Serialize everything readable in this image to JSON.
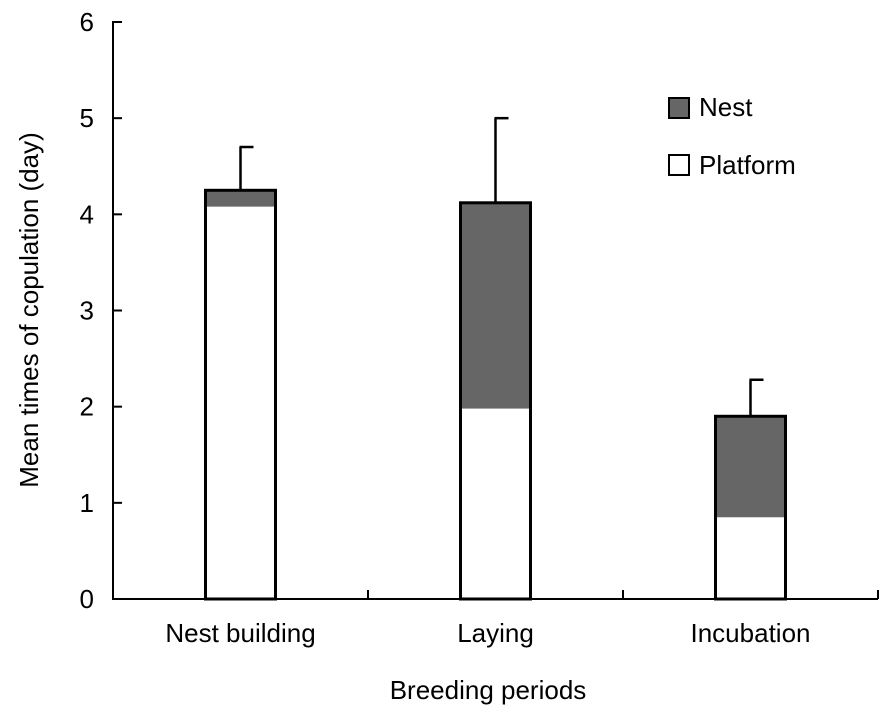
{
  "chart_data": {
    "type": "bar",
    "stacked": true,
    "categories": [
      "Nest building",
      "Laying",
      "Incubation"
    ],
    "series": [
      {
        "name": "Platform",
        "values": [
          4.08,
          1.98,
          0.85
        ],
        "color": "#ffffff"
      },
      {
        "name": "Nest",
        "values": [
          0.17,
          2.14,
          1.05
        ],
        "color": "#666666"
      }
    ],
    "totals": [
      4.25,
      4.12,
      1.9
    ],
    "error_upper": [
      4.7,
      5.0,
      2.28
    ],
    "xlabel": "Breeding periods",
    "ylabel": "Mean times of copulation (day)",
    "ylim": [
      0,
      6
    ],
    "yticks": [
      "0",
      "1",
      "2",
      "3",
      "4",
      "5",
      "6"
    ],
    "grid": false,
    "legend_position": "top-right",
    "legend": [
      {
        "label": "Nest",
        "color": "#666666"
      },
      {
        "label": "Platform",
        "color": "#ffffff"
      }
    ]
  }
}
